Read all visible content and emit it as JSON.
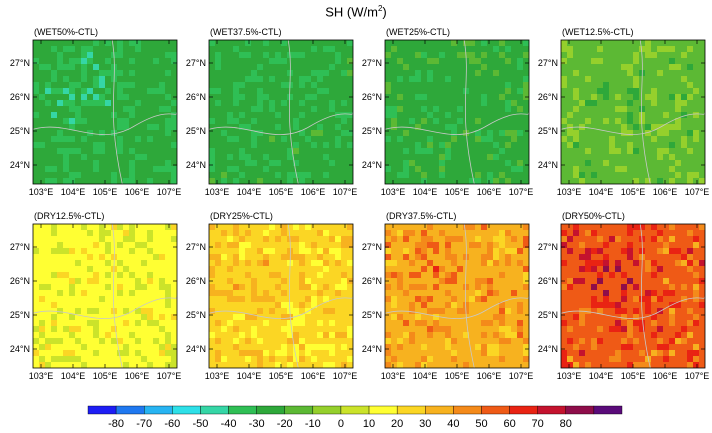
{
  "figure": {
    "title_main": "SH (W/m",
    "title_sup": "2",
    "title_close": ")"
  },
  "axes": {
    "lat_ticks": [
      "27°N",
      "26°N",
      "25°N",
      "24°N"
    ],
    "lon_ticks": [
      "103°E",
      "104°E",
      "105°E",
      "106°E",
      "107°E"
    ]
  },
  "panels": [
    {
      "label": "(WET50%-CTL)",
      "level": -30
    },
    {
      "label": "(WET37.5%-CTL)",
      "level": -28
    },
    {
      "label": "(WET25%-CTL)",
      "level": -25
    },
    {
      "label": "(WET12.5%-CTL)",
      "level": -12
    },
    {
      "label": "(DRY12.5%-CTL)",
      "level": 12
    },
    {
      "label": "(DRY25%-CTL)",
      "level": 25
    },
    {
      "label": "(DRY37.5%-CTL)",
      "level": 38
    },
    {
      "label": "(DRY50%-CTL)",
      "level": 55
    }
  ],
  "colorbar": {
    "labels": [
      "-80",
      "-70",
      "-60",
      "-50",
      "-40",
      "-30",
      "-20",
      "-10",
      "0",
      "10",
      "20",
      "30",
      "40",
      "50",
      "60",
      "70",
      "80"
    ],
    "colors": [
      "#1d1df5",
      "#1f78f0",
      "#27b4f2",
      "#2ee0e8",
      "#35d6a6",
      "#2fbf55",
      "#2ea83a",
      "#5cb934",
      "#95d02c",
      "#cbe32a",
      "#ffff33",
      "#fbd624",
      "#f7b21f",
      "#f48a1a",
      "#ef5a16",
      "#e92313",
      "#c4122e",
      "#8e0d4a",
      "#5a0b7a"
    ]
  }
}
